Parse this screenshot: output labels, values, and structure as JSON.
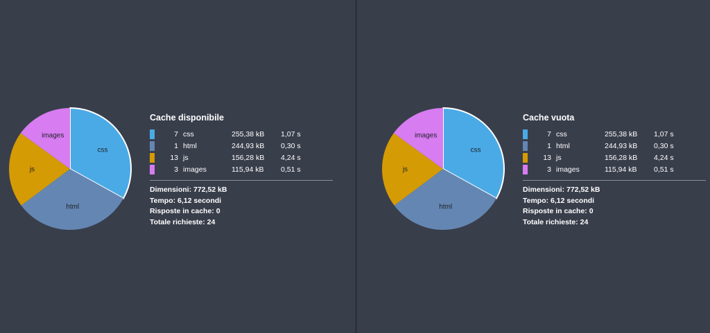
{
  "panels": [
    {
      "title": "Cache disponibile",
      "rows": [
        {
          "count": "7",
          "type": "css",
          "size": "255,38 kB",
          "time": "1,07 s",
          "color": "#4aaae6"
        },
        {
          "count": "1",
          "type": "html",
          "size": "244,93 kB",
          "time": "0,30 s",
          "color": "#6486b2"
        },
        {
          "count": "13",
          "type": "js",
          "size": "156,28 kB",
          "time": "4,24 s",
          "color": "#d49b04"
        },
        {
          "count": "3",
          "type": "images",
          "size": "115,94 kB",
          "time": "0,51 s",
          "color": "#d77cf1"
        }
      ],
      "summary": {
        "dimensioni": "Dimensioni: 772,52 kB",
        "tempo": "Tempo: 6,12 secondi",
        "risposte": "Risposte in cache: 0",
        "totale": "Totale richieste: 24"
      }
    },
    {
      "title": "Cache vuota",
      "rows": [
        {
          "count": "7",
          "type": "css",
          "size": "255,38 kB",
          "time": "1,07 s",
          "color": "#4aaae6"
        },
        {
          "count": "1",
          "type": "html",
          "size": "244,93 kB",
          "time": "0,30 s",
          "color": "#6486b2"
        },
        {
          "count": "13",
          "type": "js",
          "size": "156,28 kB",
          "time": "4,24 s",
          "color": "#d49b04"
        },
        {
          "count": "3",
          "type": "images",
          "size": "115,94 kB",
          "time": "0,51 s",
          "color": "#d77cf1"
        }
      ],
      "summary": {
        "dimensioni": "Dimensioni: 772,52 kB",
        "tempo": "Tempo: 6,12 secondi",
        "risposte": "Risposte in cache: 0",
        "totale": "Totale richieste: 24"
      }
    }
  ],
  "chart_data": [
    {
      "type": "pie",
      "categories": [
        "css",
        "html",
        "js",
        "images"
      ],
      "values": [
        255.38,
        244.93,
        156.28,
        115.94
      ],
      "colors": [
        "#4aaae6",
        "#6486b2",
        "#d49b04",
        "#d77cf1"
      ]
    },
    {
      "type": "pie",
      "categories": [
        "css",
        "html",
        "js",
        "images"
      ],
      "values": [
        255.38,
        244.93,
        156.28,
        115.94
      ],
      "colors": [
        "#4aaae6",
        "#6486b2",
        "#d49b04",
        "#d77cf1"
      ]
    }
  ]
}
